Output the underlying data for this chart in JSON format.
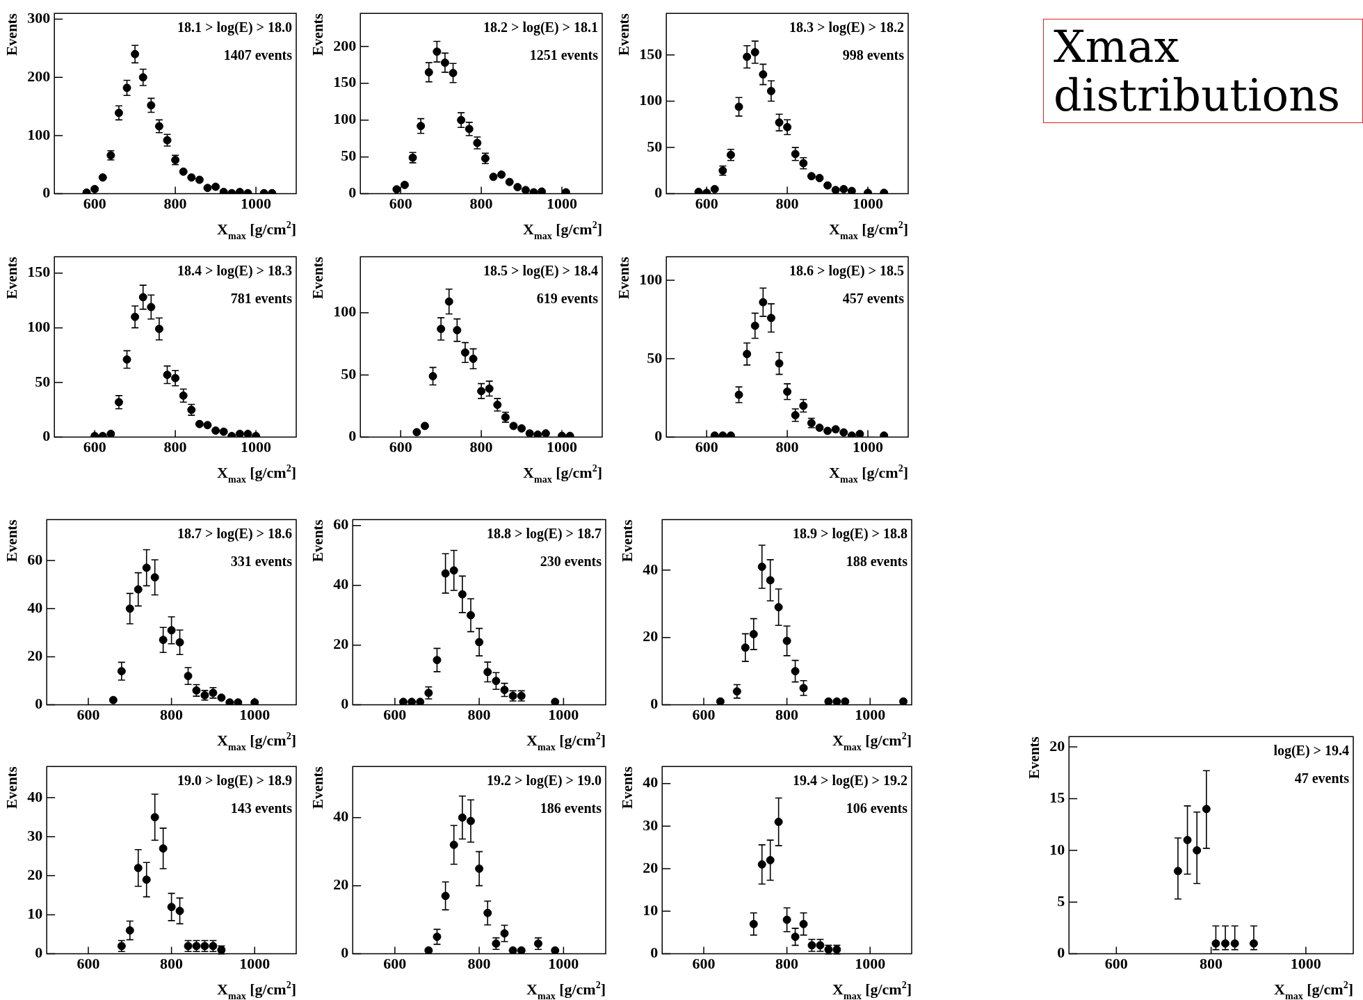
{
  "chart_data": [
    {
      "type": "scatter",
      "annotations": [
        "18.1 > log(E) > 18.0",
        "1407 events"
      ],
      "xlabel": "X$_{max}$ [g/cm$^{2}$]",
      "ylabel": "Events",
      "xlim": [
        500,
        1100
      ],
      "xticks": [
        600,
        800,
        1000
      ],
      "ylim": [
        0,
        310
      ],
      "yticks": [
        0,
        100,
        200,
        300
      ],
      "marker": "circle",
      "series": [
        {
          "color": "#000000",
          "x": [
            580,
            600,
            620,
            640,
            660,
            680,
            700,
            720,
            740,
            760,
            780,
            800,
            820,
            840,
            860,
            880,
            900,
            920,
            940,
            960,
            980,
            1020,
            1040
          ],
          "values": [
            2,
            8,
            28,
            66,
            139,
            182,
            240,
            200,
            152,
            116,
            92,
            58,
            38,
            28,
            24,
            10,
            12,
            3,
            1,
            3,
            1,
            1,
            1
          ],
          "errors": [
            null,
            null,
            null,
            8,
            12,
            13,
            15,
            14,
            12,
            11,
            10,
            8,
            null,
            null,
            null,
            null,
            null,
            null,
            null,
            null,
            null,
            null,
            null
          ]
        }
      ]
    },
    {
      "type": "scatter",
      "annotations": [
        "18.2 > log(E) > 18.1",
        "1251 events"
      ],
      "xlabel": "X$_{max}$ [g/cm$^{2}$]",
      "ylabel": "Events",
      "xlim": [
        500,
        1100
      ],
      "xticks": [
        600,
        800,
        1000
      ],
      "ylim": [
        0,
        245
      ],
      "yticks": [
        0,
        50,
        100,
        150,
        200
      ],
      "marker": "circle",
      "series": [
        {
          "color": "#000000",
          "x": [
            590,
            610,
            630,
            650,
            670,
            690,
            710,
            730,
            750,
            770,
            790,
            810,
            830,
            850,
            870,
            890,
            910,
            930,
            950,
            1010
          ],
          "values": [
            6,
            12,
            49,
            92,
            165,
            193,
            178,
            164,
            100,
            88,
            69,
            48,
            23,
            26,
            16,
            9,
            5,
            2,
            3,
            2
          ],
          "errors": [
            null,
            null,
            7,
            10,
            13,
            14,
            13,
            13,
            10,
            9,
            8,
            7,
            null,
            null,
            null,
            null,
            null,
            null,
            null,
            null
          ]
        }
      ]
    },
    {
      "type": "scatter",
      "annotations": [
        "18.3 > log(E) > 18.2",
        "998 events"
      ],
      "xlabel": "X$_{max}$ [g/cm$^{2}$]",
      "ylabel": "Events",
      "xlim": [
        500,
        1100
      ],
      "xticks": [
        600,
        800,
        1000
      ],
      "ylim": [
        0,
        195
      ],
      "yticks": [
        0,
        50,
        100,
        150
      ],
      "marker": "circle",
      "series": [
        {
          "color": "#000000",
          "x": [
            580,
            600,
            620,
            640,
            660,
            680,
            700,
            720,
            740,
            760,
            780,
            800,
            820,
            840,
            860,
            880,
            900,
            920,
            940,
            960,
            1000,
            1040
          ],
          "values": [
            2,
            1,
            5,
            25,
            42,
            94,
            148,
            153,
            129,
            111,
            77,
            72,
            43,
            33,
            19,
            17,
            9,
            4,
            5,
            3,
            1,
            1
          ],
          "errors": [
            null,
            null,
            null,
            5,
            6,
            10,
            12,
            12,
            11,
            11,
            9,
            8,
            7,
            6,
            null,
            null,
            null,
            null,
            null,
            null,
            null,
            null
          ]
        }
      ]
    },
    {
      "type": "other",
      "title": "Xmax distributions"
    },
    {
      "type": "scatter",
      "annotations": [
        "18.4 > log(E) > 18.3",
        "781 events"
      ],
      "xlabel": "X$_{max}$ [g/cm$^{2}$]",
      "ylabel": "Events",
      "xlim": [
        500,
        1100
      ],
      "xticks": [
        600,
        800,
        1000
      ],
      "ylim": [
        0,
        165
      ],
      "yticks": [
        0,
        50,
        100,
        150
      ],
      "marker": "circle",
      "series": [
        {
          "color": "#000000",
          "x": [
            600,
            620,
            640,
            660,
            680,
            700,
            720,
            740,
            760,
            780,
            800,
            820,
            840,
            860,
            880,
            900,
            920,
            940,
            960,
            980,
            1000
          ],
          "values": [
            1,
            1,
            3,
            32,
            71,
            110,
            128,
            119,
            99,
            57,
            54,
            38,
            25,
            12,
            11,
            6,
            5,
            1,
            3,
            3,
            1
          ],
          "errors": [
            null,
            null,
            null,
            6,
            8,
            10,
            11,
            11,
            10,
            8,
            7,
            6,
            5,
            null,
            null,
            null,
            null,
            null,
            null,
            null,
            null
          ]
        }
      ]
    },
    {
      "type": "scatter",
      "annotations": [
        "18.5 > log(E) > 18.4",
        "619 events"
      ],
      "xlabel": "X$_{max}$ [g/cm$^{2}$]",
      "ylabel": "Events",
      "xlim": [
        500,
        1100
      ],
      "xticks": [
        600,
        800,
        1000
      ],
      "ylim": [
        0,
        145
      ],
      "yticks": [
        0,
        50,
        100
      ],
      "marker": "circle",
      "series": [
        {
          "color": "#000000",
          "x": [
            640,
            660,
            680,
            700,
            720,
            740,
            760,
            780,
            800,
            820,
            840,
            860,
            880,
            900,
            920,
            940,
            960,
            1000,
            1020
          ],
          "values": [
            4,
            9,
            49,
            87,
            109,
            86,
            68,
            63,
            37,
            39,
            26,
            16,
            9,
            7,
            3,
            2,
            3,
            1,
            1
          ],
          "errors": [
            null,
            null,
            7,
            9,
            10,
            9,
            8,
            8,
            6,
            6,
            5,
            4,
            null,
            null,
            null,
            null,
            null,
            null,
            null
          ]
        }
      ]
    },
    {
      "type": "scatter",
      "annotations": [
        "18.6 > log(E) > 18.5",
        "457 events"
      ],
      "xlabel": "X$_{max}$ [g/cm$^{2}$]",
      "ylabel": "Events",
      "xlim": [
        500,
        1100
      ],
      "xticks": [
        600,
        800,
        1000
      ],
      "ylim": [
        0,
        115
      ],
      "yticks": [
        0,
        50,
        100
      ],
      "marker": "circle",
      "series": [
        {
          "color": "#000000",
          "x": [
            620,
            640,
            660,
            680,
            700,
            720,
            740,
            760,
            780,
            800,
            820,
            840,
            860,
            880,
            900,
            920,
            940,
            960,
            980,
            1040
          ],
          "values": [
            1,
            1,
            1,
            27,
            53,
            71,
            86,
            76,
            47,
            29,
            14,
            20,
            9,
            6,
            4,
            5,
            3,
            1,
            2,
            1
          ],
          "errors": [
            null,
            null,
            null,
            5,
            7,
            8,
            9,
            9,
            7,
            5,
            4,
            4,
            3,
            null,
            null,
            null,
            null,
            null,
            null,
            null
          ]
        }
      ]
    },
    {
      "type": "scatter",
      "annotations": [
        "18.7 > log(E) > 18.6",
        "331 events"
      ],
      "xlabel": "X$_{max}$ [g/cm$^{2}$]",
      "ylabel": "Events",
      "xlim": [
        500,
        1100
      ],
      "xticks": [
        600,
        800,
        1000
      ],
      "ylim": [
        0,
        77
      ],
      "yticks": [
        0,
        20,
        40,
        60
      ],
      "marker": "circle",
      "series": [
        {
          "color": "#000000",
          "x": [
            660,
            680,
            700,
            720,
            740,
            760,
            780,
            800,
            820,
            840,
            860,
            880,
            900,
            920,
            940,
            960,
            1000
          ],
          "values": [
            2,
            14,
            40,
            48,
            57,
            53,
            27,
            31,
            26,
            12,
            6,
            4,
            5,
            3,
            1,
            1,
            1
          ],
          "errors": [
            null,
            3.7,
            6.3,
            6.9,
            7.5,
            7.3,
            5.2,
            5.6,
            5.1,
            3.5,
            2.4,
            2,
            2.2,
            null,
            null,
            null,
            null
          ]
        }
      ]
    },
    {
      "type": "scatter",
      "annotations": [
        "18.8 > log(E) > 18.7",
        "230 events"
      ],
      "xlabel": "X$_{max}$ [g/cm$^{2}$]",
      "ylabel": "Events",
      "xlim": [
        500,
        1100
      ],
      "xticks": [
        600,
        800,
        1000
      ],
      "ylim": [
        0,
        62
      ],
      "yticks": [
        0,
        20,
        40,
        60
      ],
      "marker": "circle",
      "series": [
        {
          "color": "#000000",
          "x": [
            620,
            640,
            660,
            680,
            700,
            720,
            740,
            760,
            780,
            800,
            820,
            840,
            860,
            880,
            900,
            980
          ],
          "values": [
            1,
            1,
            1,
            4,
            15,
            44,
            45,
            37,
            30,
            21,
            11,
            8,
            5,
            3,
            3,
            1
          ],
          "errors": [
            null,
            null,
            null,
            2,
            3.9,
            6.6,
            6.7,
            6.1,
            5.5,
            4.6,
            3.3,
            2.8,
            2.2,
            1.7,
            1.7,
            null
          ]
        }
      ]
    },
    {
      "type": "scatter",
      "annotations": [
        "18.9 > log(E) > 18.8",
        "188 events"
      ],
      "xlabel": "X$_{max}$ [g/cm$^{2}$]",
      "ylabel": "Events",
      "xlim": [
        500,
        1100
      ],
      "xticks": [
        600,
        800,
        1000
      ],
      "ylim": [
        0,
        55
      ],
      "yticks": [
        0,
        20,
        40
      ],
      "marker": "circle",
      "series": [
        {
          "color": "#000000",
          "x": [
            640,
            680,
            700,
            720,
            740,
            760,
            780,
            800,
            820,
            840,
            900,
            920,
            940,
            1080
          ],
          "values": [
            1,
            4,
            17,
            21,
            41,
            37,
            29,
            19,
            10,
            5,
            1,
            1,
            1,
            1
          ],
          "errors": [
            null,
            2,
            4.1,
            4.6,
            6.4,
            6.1,
            5.4,
            4.4,
            3.2,
            2.2,
            null,
            null,
            null,
            null
          ]
        }
      ]
    },
    {
      "type": "scatter",
      "annotations": [
        "19.0 > log(E) > 18.9",
        "143 events"
      ],
      "xlabel": "X$_{max}$ [g/cm$^{2}$]",
      "ylabel": "Events",
      "xlim": [
        500,
        1100
      ],
      "xticks": [
        600,
        800,
        1000
      ],
      "ylim": [
        0,
        48
      ],
      "yticks": [
        0,
        10,
        20,
        30,
        40
      ],
      "marker": "circle",
      "series": [
        {
          "color": "#000000",
          "x": [
            680,
            700,
            720,
            740,
            760,
            780,
            800,
            820,
            840,
            860,
            880,
            900,
            920
          ],
          "values": [
            2,
            6,
            22,
            19,
            35,
            27,
            12,
            11,
            2,
            2,
            2,
            2,
            1
          ],
          "errors": [
            1.4,
            2.4,
            4.7,
            4.4,
            5.9,
            5.2,
            3.5,
            3.3,
            1.4,
            1.4,
            1.4,
            1.4,
            1
          ]
        }
      ]
    },
    {
      "type": "scatter",
      "annotations": [
        "19.2 > log(E) > 19.0",
        "186 events"
      ],
      "xlabel": "X$_{max}$ [g/cm$^{2}$]",
      "ylabel": "Events",
      "xlim": [
        500,
        1100
      ],
      "xticks": [
        600,
        800,
        1000
      ],
      "ylim": [
        0,
        55
      ],
      "yticks": [
        0,
        20,
        40
      ],
      "marker": "circle",
      "series": [
        {
          "color": "#000000",
          "x": [
            680,
            700,
            720,
            740,
            760,
            780,
            800,
            820,
            840,
            860,
            880,
            900,
            940,
            980
          ],
          "values": [
            1,
            5,
            17,
            32,
            40,
            39,
            25,
            12,
            3,
            6,
            1,
            1,
            3,
            1
          ],
          "errors": [
            null,
            2.2,
            4.1,
            5.7,
            6.3,
            6.2,
            5,
            3.5,
            1.7,
            2.4,
            null,
            null,
            1.7,
            null
          ]
        }
      ]
    },
    {
      "type": "scatter",
      "annotations": [
        "19.4 > log(E) > 19.2",
        "106 events"
      ],
      "xlabel": "X$_{max}$ [g/cm$^{2}$]",
      "ylabel": "Events",
      "xlim": [
        500,
        1100
      ],
      "xticks": [
        600,
        800,
        1000
      ],
      "ylim": [
        0,
        44
      ],
      "yticks": [
        0,
        10,
        20,
        30,
        40
      ],
      "marker": "circle",
      "series": [
        {
          "color": "#000000",
          "x": [
            720,
            740,
            760,
            780,
            800,
            820,
            840,
            860,
            880,
            900,
            920
          ],
          "values": [
            7,
            21,
            22,
            31,
            8,
            4,
            7,
            2,
            2,
            1,
            1
          ],
          "errors": [
            2.6,
            4.6,
            4.7,
            5.6,
            2.8,
            2,
            2.6,
            1.4,
            1.4,
            1,
            1
          ]
        }
      ]
    },
    {
      "type": "scatter",
      "annotations": [
        "log(E) > 19.4",
        "47 events"
      ],
      "xlabel": "X$_{max}$ [g/cm$^{2}$]",
      "ylabel": "Events",
      "xlim": [
        500,
        1100
      ],
      "xticks": [
        600,
        800,
        1000
      ],
      "ylim": [
        0,
        21
      ],
      "yticks": [
        0,
        5,
        10,
        15,
        20
      ],
      "marker": "circle",
      "series": [
        {
          "color": "#000000",
          "x": [
            730,
            750,
            770,
            790,
            810,
            830,
            850,
            890
          ],
          "values": [
            8,
            11,
            10,
            14,
            1,
            1,
            1,
            1
          ],
          "errors": [
            [
              5.3,
              11.2
            ],
            [
              7.7,
              14.3
            ],
            [
              6.8,
              13.7
            ],
            [
              10.2,
              17.7
            ],
            [
              0.4,
              2.7
            ],
            [
              0.4,
              2.7
            ],
            [
              0.4,
              2.7
            ],
            [
              0.4,
              2.7
            ]
          ]
        }
      ]
    }
  ]
}
